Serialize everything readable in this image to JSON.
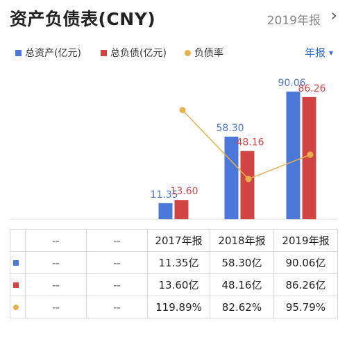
{
  "header": {
    "title": "资产负债表(CNY)",
    "period": "2019年报"
  },
  "legend": {
    "selector": "年报"
  },
  "colors": {
    "assets": "#4a77d8",
    "liabilities": "#d04444",
    "ratio": "#e8b04a"
  },
  "icons": {
    "chevron": "chevron-right-icon",
    "caret": "caret-down-icon"
  },
  "chart_data": {
    "type": "bar",
    "categories": [
      "2017年报",
      "2018年报",
      "2019年报"
    ],
    "series": [
      {
        "name": "总资产(亿元)",
        "values": [
          11.35,
          58.3,
          90.06
        ],
        "labels": [
          "11.35",
          "58.30",
          "90.06"
        ]
      },
      {
        "name": "总负债(亿元)",
        "values": [
          13.6,
          48.16,
          86.26
        ],
        "labels": [
          "13.60",
          "48.16",
          "86.26"
        ]
      },
      {
        "name": "负债率",
        "type": "line",
        "values": [
          119.89,
          82.62,
          95.79
        ]
      }
    ],
    "ylim": [
      0,
      95
    ]
  },
  "table": {
    "headers": [
      "--",
      "--",
      "2017年报",
      "2018年报",
      "2019年报"
    ],
    "rows": [
      {
        "cells": [
          "--",
          "--",
          "11.35亿",
          "58.30亿",
          "90.06亿"
        ]
      },
      {
        "cells": [
          "--",
          "--",
          "13.60亿",
          "48.16亿",
          "86.26亿"
        ]
      },
      {
        "cells": [
          "--",
          "--",
          "119.89%",
          "82.62%",
          "95.79%"
        ]
      }
    ]
  }
}
